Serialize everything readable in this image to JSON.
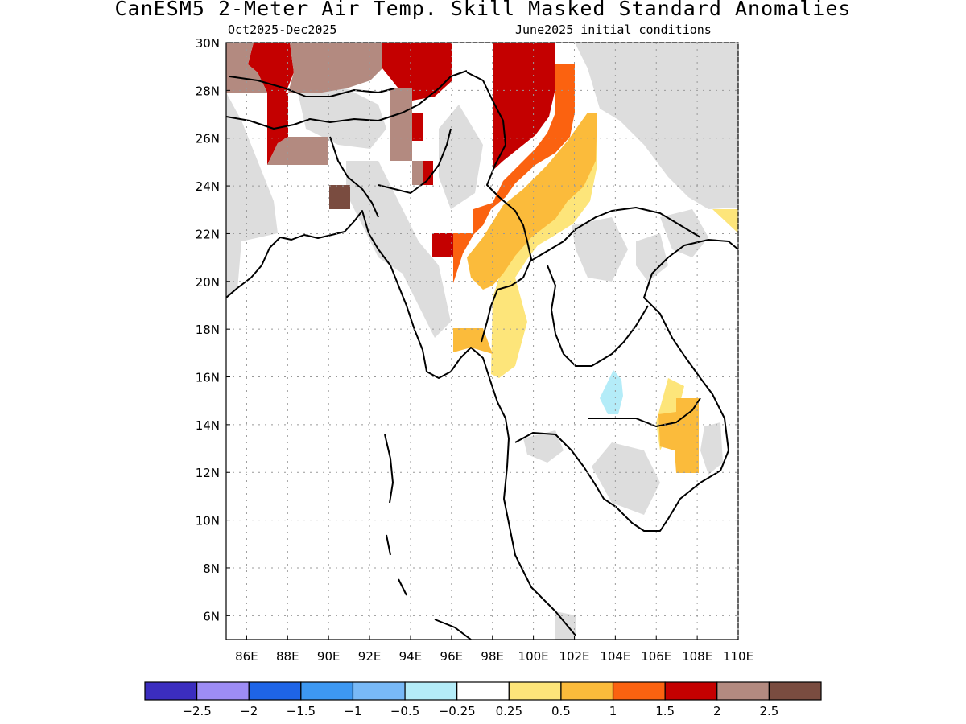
{
  "title": "CanESM5 2-Meter Air Temp. Skill Masked Standard Anomalies",
  "subtitle_left": "Oct2025-Dec2025",
  "subtitle_right": "June2025 initial conditions",
  "map": {
    "lon_range": [
      85,
      110
    ],
    "lat_range": [
      5,
      30
    ],
    "lon_ticks": [
      "86E",
      "88E",
      "90E",
      "92E",
      "94E",
      "96E",
      "98E",
      "100E",
      "102E",
      "104E",
      "106E",
      "108E",
      "110E"
    ],
    "lat_ticks": [
      "6N",
      "8N",
      "10N",
      "12N",
      "14N",
      "16N",
      "18N",
      "20N",
      "22N",
      "24N",
      "26N",
      "28N",
      "30N"
    ],
    "grid": "dotted"
  },
  "colorbar": {
    "colors": [
      "#3b2dbf",
      "#9d8cf5",
      "#1e64e6",
      "#3d98f2",
      "#78b9f7",
      "#b4ecf8",
      "#ffffff",
      "#fde57a",
      "#fbbb3b",
      "#fb6210",
      "#c40000",
      "#b38a80",
      "#7a4c40"
    ],
    "labels": [
      "-2.5",
      "-2",
      "-1.5",
      "-1",
      "-0.5",
      "-0.25",
      "0.25",
      "0.5",
      "1",
      "1.5",
      "2",
      "2.5"
    ]
  },
  "mask_color": "#dddddd"
}
